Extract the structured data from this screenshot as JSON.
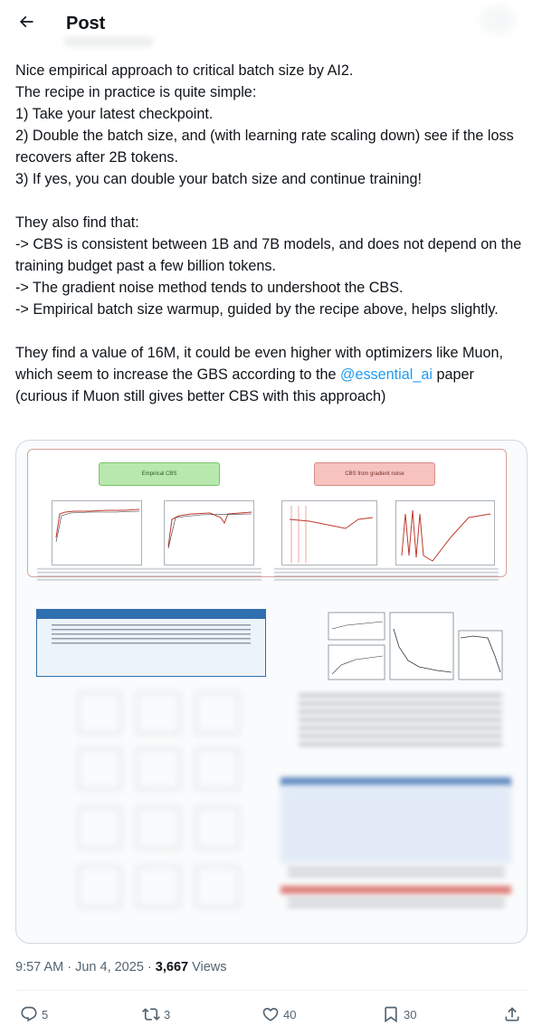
{
  "header": {
    "title": "Post",
    "back_icon": "arrow-left-icon"
  },
  "post": {
    "text_before_mention": "Nice empirical approach to critical batch size by AI2.\nThe recipe in practice is quite simple:\n1) Take your latest checkpoint.\n2) Double the batch size, and (with learning rate scaling down) see if the loss recovers after 2B tokens.\n3) If yes, you can double your batch size and continue training!\n\nThey also find that:\n-> CBS is consistent between 1B and 7B models, and does not depend on the training budget past a few billion tokens.\n-> The gradient noise method tends to undershoot the CBS.\n-> Empirical batch size warmup, guided by the recipe above, helps slightly.\n\nThey find a value of 16M, it could be even higher with optimizers like Muon, which seem to increase the GBS according to the ",
    "mention": "@essential_ai",
    "text_after_mention": " paper (curious if Muon still gives better CBS with this approach)"
  },
  "media": {
    "green_badge": "Empirical CBS",
    "red_badge": "CBS from gradient noise"
  },
  "meta": {
    "time": "9:57 AM",
    "date": "Jun 4, 2025",
    "views_count": "3,667",
    "views_label": "Views"
  },
  "actions": {
    "replies": "5",
    "reposts": "3",
    "likes": "40",
    "bookmarks": "30"
  },
  "colors": {
    "text": "#0f1419",
    "secondary": "#536471",
    "link": "#1d9bf0",
    "border": "#cfd9de"
  }
}
